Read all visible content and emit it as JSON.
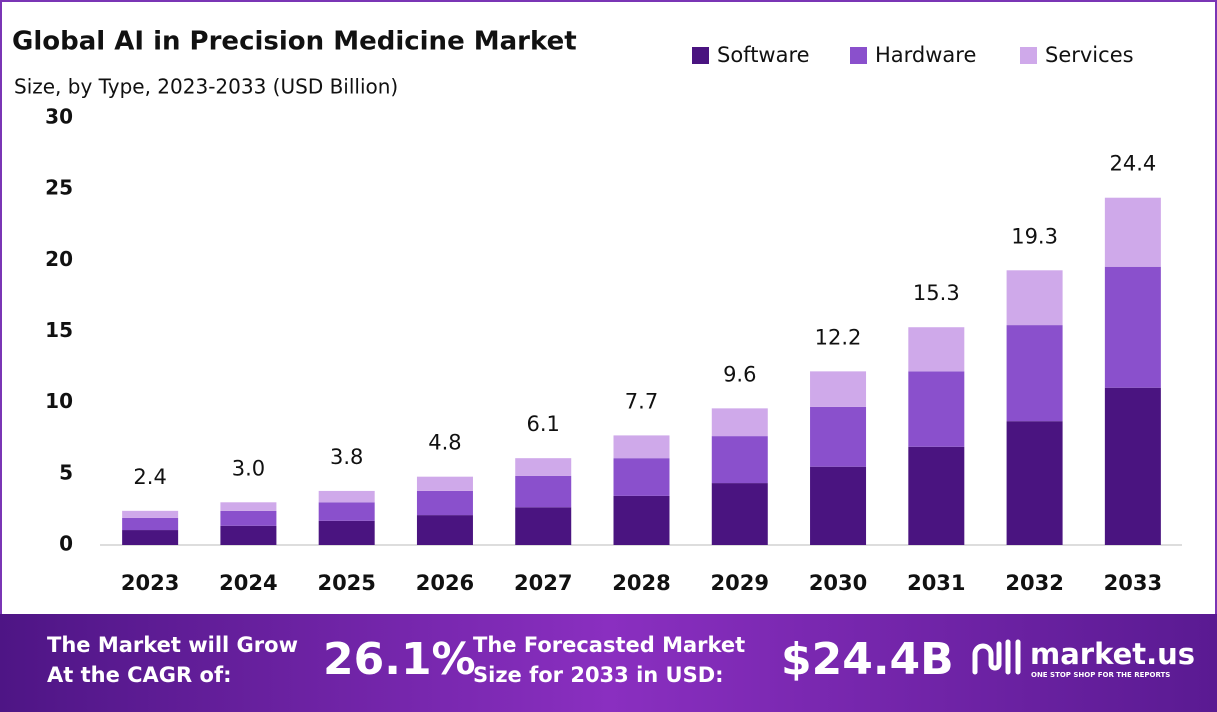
{
  "chart_data": {
    "type": "stacked-bar",
    "title": "Global AI in Precision Medicine Market",
    "subtitle": "Size, by Type, 2023-2033 (USD Billion)",
    "categories": [
      "2023",
      "2024",
      "2025",
      "2026",
      "2027",
      "2028",
      "2029",
      "2030",
      "2031",
      "2032",
      "2033"
    ],
    "series": [
      {
        "name": "Software",
        "color": "#4a1480",
        "values": [
          1.05,
          1.35,
          1.7,
          2.1,
          2.65,
          3.45,
          4.35,
          5.5,
          6.9,
          8.7,
          11.05
        ]
      },
      {
        "name": "Hardware",
        "color": "#8a50cc",
        "values": [
          0.85,
          1.05,
          1.3,
          1.7,
          2.2,
          2.65,
          3.3,
          4.2,
          5.3,
          6.75,
          8.5
        ]
      },
      {
        "name": "Services",
        "color": "#cfa9ea",
        "values": [
          0.5,
          0.6,
          0.8,
          1.0,
          1.25,
          1.6,
          1.95,
          2.5,
          3.1,
          3.85,
          4.85
        ]
      }
    ],
    "totals": {
      "values": [
        2.4,
        3.0,
        3.8,
        4.8,
        6.1,
        7.7,
        9.6,
        12.2,
        15.3,
        19.3,
        24.4
      ],
      "value_labels": [
        "2.4",
        "3.0",
        "3.8",
        "4.8",
        "6.1",
        "7.7",
        "9.6",
        "12.2",
        "15.3",
        "19.3",
        "24.4"
      ]
    },
    "ylim": [
      0,
      30
    ],
    "yticks": [
      0,
      5,
      10,
      15,
      20,
      25,
      30
    ],
    "grid": false,
    "legend": "top-right"
  },
  "footer": {
    "cagr_text": [
      "The Market will Grow",
      "At the CAGR of:"
    ],
    "cagr_value": "26.1%",
    "forecast_text": [
      "The Forecasted Market",
      "Size for 2033 in USD:"
    ],
    "forecast_value": "$24.4B",
    "brand": "market.us",
    "tagline": "ONE STOP SHOP FOR THE REPORTS"
  }
}
